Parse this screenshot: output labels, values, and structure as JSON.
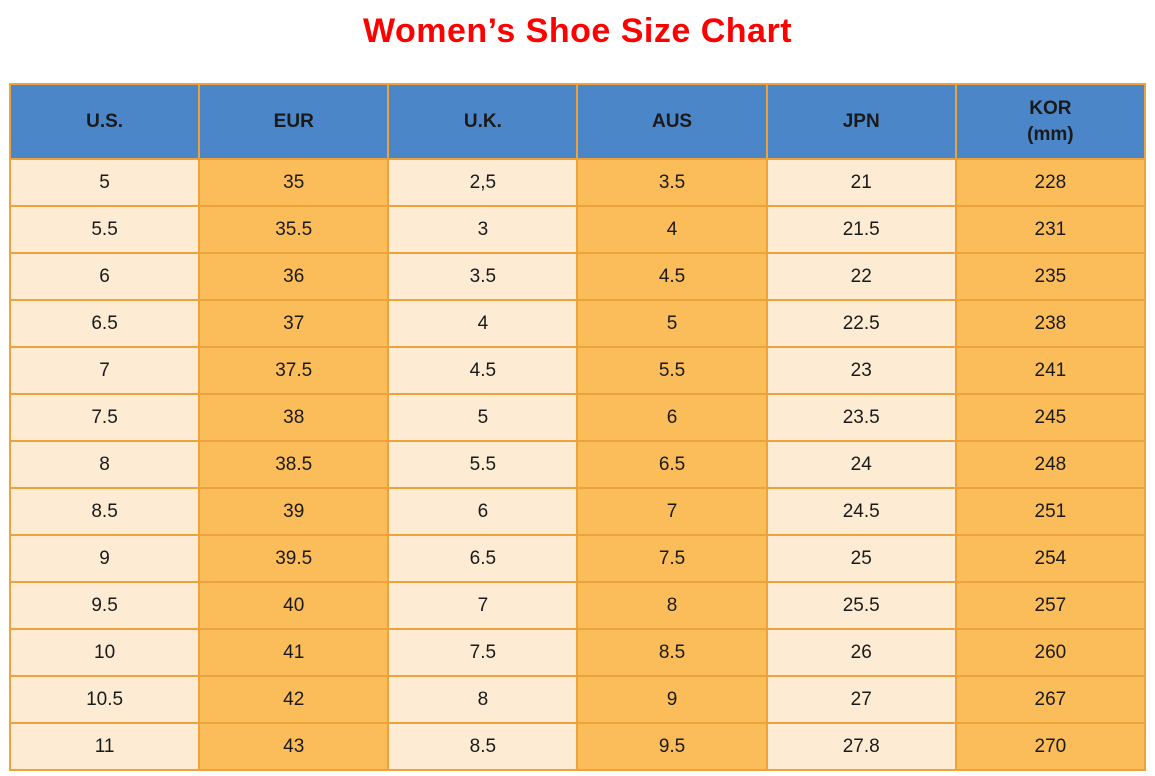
{
  "colors": {
    "title_color": "#FF0000",
    "header_bg": "#4A86C8",
    "cell_light": "#FDEBD3",
    "cell_orange": "#FBBD59",
    "border_color": "#EDA23B",
    "text_color": "#1A1A1A"
  },
  "chart_data": {
    "type": "table",
    "title": "Women’s Shoe Size Chart",
    "columns": [
      {
        "label": "U.S."
      },
      {
        "label": "EUR"
      },
      {
        "label": "U.K."
      },
      {
        "label": "AUS"
      },
      {
        "label": "JPN"
      },
      {
        "label": "KOR",
        "sublabel": "(mm)"
      }
    ],
    "rows": [
      [
        "5",
        "35",
        "2,5",
        "3.5",
        "21",
        "228"
      ],
      [
        "5.5",
        "35.5",
        "3",
        "4",
        "21.5",
        "231"
      ],
      [
        "6",
        "36",
        "3.5",
        "4.5",
        "22",
        "235"
      ],
      [
        "6.5",
        "37",
        "4",
        "5",
        "22.5",
        "238"
      ],
      [
        "7",
        "37.5",
        "4.5",
        "5.5",
        "23",
        "241"
      ],
      [
        "7.5",
        "38",
        "5",
        "6",
        "23.5",
        "245"
      ],
      [
        "8",
        "38.5",
        "5.5",
        "6.5",
        "24",
        "248"
      ],
      [
        "8.5",
        "39",
        "6",
        "7",
        "24.5",
        "251"
      ],
      [
        "9",
        "39.5",
        "6.5",
        "7.5",
        "25",
        "254"
      ],
      [
        "9.5",
        "40",
        "7",
        "8",
        "25.5",
        "257"
      ],
      [
        "10",
        "41",
        "7.5",
        "8.5",
        "26",
        "260"
      ],
      [
        "10.5",
        "42",
        "8",
        "9",
        "27",
        "267"
      ],
      [
        "11",
        "43",
        "8.5",
        "9.5",
        "27.8",
        "270"
      ]
    ],
    "layout": {
      "header_text_color": "black",
      "column_fill_pattern": [
        "light",
        "orange",
        "light",
        "orange",
        "light",
        "orange"
      ],
      "grid": "on"
    }
  }
}
